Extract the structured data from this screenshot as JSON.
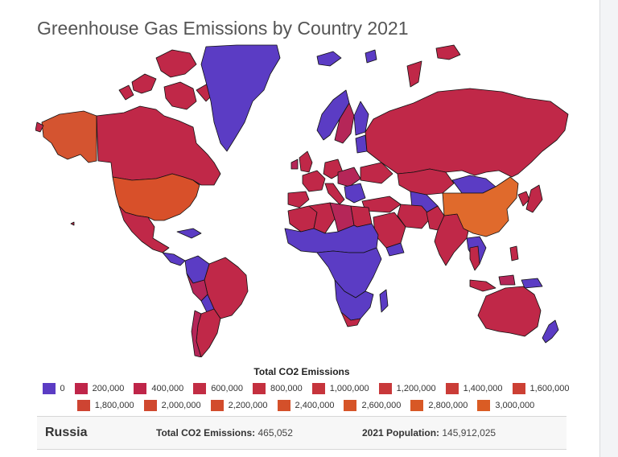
{
  "title": "Greenhouse Gas Emissions by Country 2021",
  "legend": {
    "title": "Total CO2 Emissions",
    "items": [
      {
        "label": "0",
        "color": "#5b3cc4"
      },
      {
        "label": "200,000",
        "color": "#bf2549"
      },
      {
        "label": "400,000",
        "color": "#bf2549"
      },
      {
        "label": "600,000",
        "color": "#c22d44"
      },
      {
        "label": "800,000",
        "color": "#c4303f"
      },
      {
        "label": "1,000,000",
        "color": "#c6343c"
      },
      {
        "label": "1,200,000",
        "color": "#c8383a"
      },
      {
        "label": "1,400,000",
        "color": "#ca3c37"
      },
      {
        "label": "1,600,000",
        "color": "#cc4034"
      },
      {
        "label": "1,800,000",
        "color": "#ce4432"
      },
      {
        "label": "2,000,000",
        "color": "#d0482f"
      },
      {
        "label": "2,200,000",
        "color": "#d24c2c"
      },
      {
        "label": "2,400,000",
        "color": "#d4502a"
      },
      {
        "label": "2,600,000",
        "color": "#d65428"
      },
      {
        "label": "2,800,000",
        "color": "#d85826"
      },
      {
        "label": "3,000,000",
        "color": "#da5c24"
      }
    ]
  },
  "info": {
    "country": "Russia",
    "emissions_label": "Total CO2 Emissions:",
    "emissions_value": "465,052",
    "population_label": "2021 Population:",
    "population_value": "145,912,025"
  },
  "colors": {
    "low": "#5b3cc4",
    "mid": "#b52658",
    "red": "#c02848",
    "high": "#d8502a",
    "highest": "#e06a2c"
  }
}
